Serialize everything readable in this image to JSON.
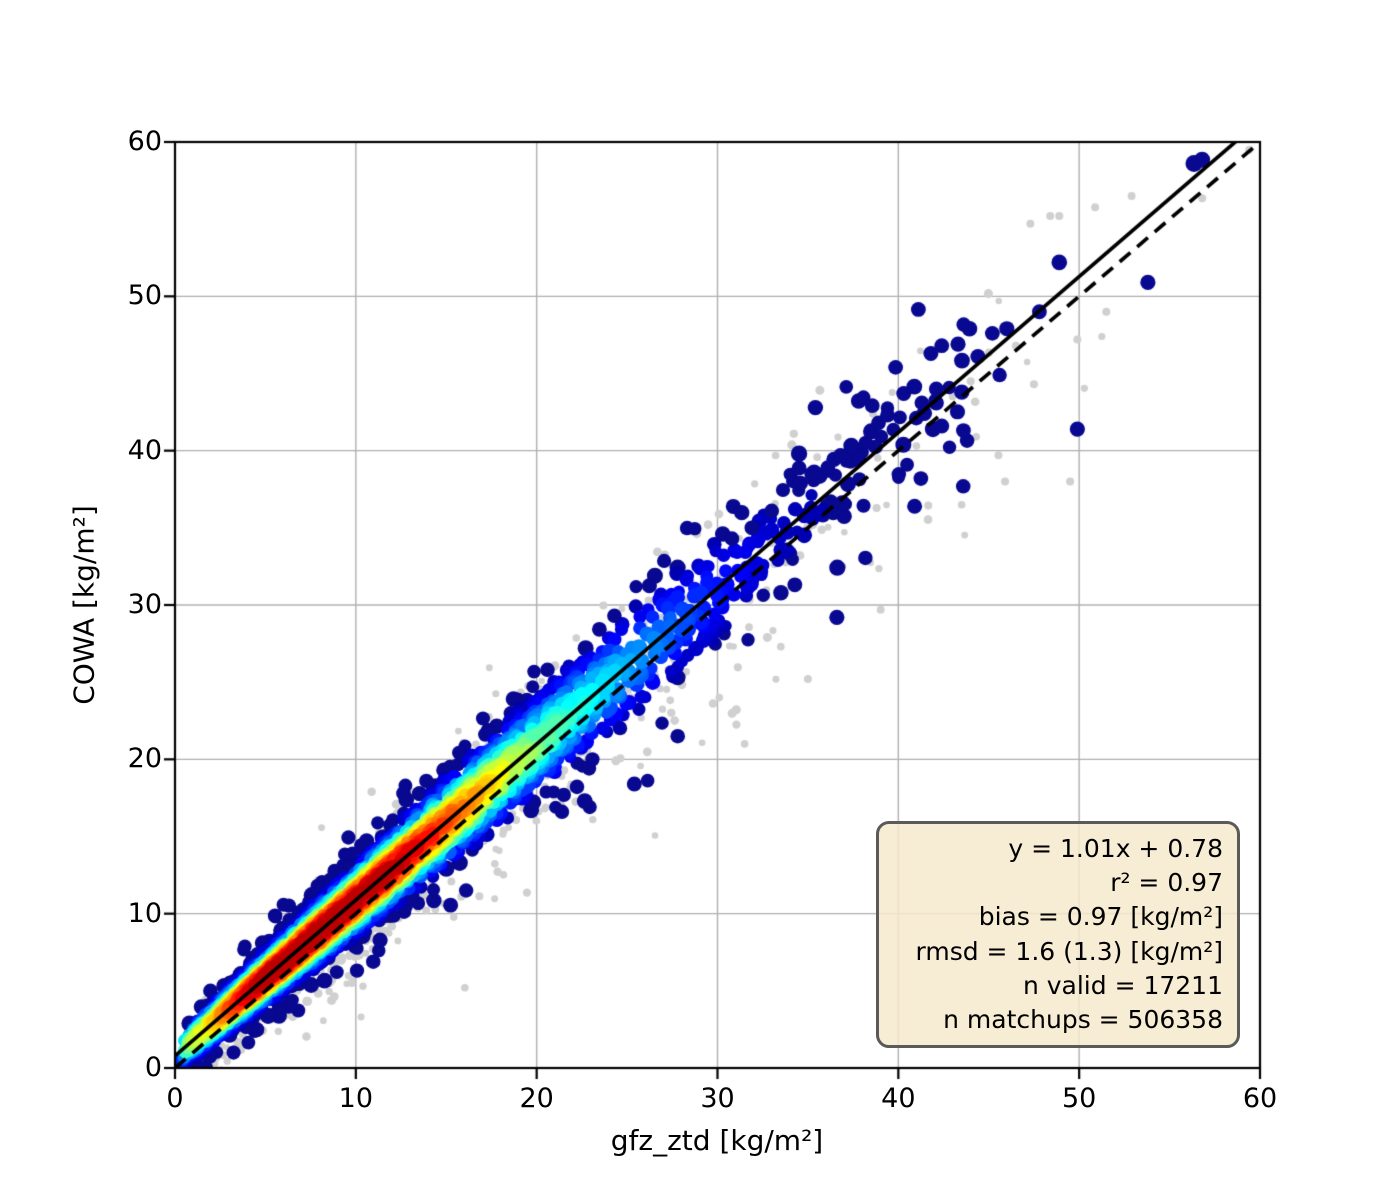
{
  "chart_data": {
    "type": "scatter",
    "title": "",
    "xlabel": "gfz_ztd [kg/m²]",
    "ylabel": "COWA [kg/m²]",
    "xlim": [
      0,
      60
    ],
    "ylim": [
      0,
      60
    ],
    "xticks": [
      0,
      10,
      20,
      30,
      40,
      50,
      60
    ],
    "yticks": [
      0,
      10,
      20,
      30,
      40,
      50,
      60
    ],
    "grid": true,
    "grid_color": "#b0b0b0",
    "background_color": "#ffffff",
    "spine_color": "#000000",
    "identity_line": {
      "from": [
        0,
        0
      ],
      "to": [
        60,
        60
      ],
      "style": "dashed",
      "color": "#000000"
    },
    "fit_line": {
      "slope": 1.01,
      "intercept": 0.78,
      "style": "solid",
      "color": "#000000"
    },
    "stats_box": {
      "face_color": "rgba(246,233,205,0.85)",
      "edge_color": "#5a5a5a",
      "lines": [
        "y = 1.01x + 0.78",
        "r² = 0.97",
        "bias = 0.97 [kg/m²]",
        "rmsd = 1.6 (1.3) [kg/m²]",
        "n valid = 17211",
        "n matchups = 506358"
      ]
    },
    "density_scatter": {
      "colormap": "jet",
      "navy_color_floor": [
        8,
        8,
        145
      ],
      "gray_color": "#d0d0d0",
      "seed": 7,
      "n_colored": 4300,
      "n_gray": 780,
      "x_scales_colored": [
        [
          0.6,
          4.4
        ],
        [
          0.35,
          6.8
        ],
        [
          0.05,
          9.5
        ]
      ],
      "x_scales_gray": [
        [
          0.5,
          5.5
        ],
        [
          0.4,
          8.5
        ],
        [
          0.1,
          12.0
        ]
      ],
      "x_max_colored": 44,
      "x_max_gray": 52,
      "sd_base": 0.5,
      "sd_slope": 0.055,
      "gray_sd_factor": 1.75,
      "fat_tail_prob": 0.07,
      "fat_tail_factor": 2.1,
      "core_t_by_x": [
        [
          0,
          0.45
        ],
        [
          2,
          0.62
        ],
        [
          3,
          0.76
        ],
        [
          4,
          0.86
        ],
        [
          5,
          0.92
        ],
        [
          8,
          0.95
        ],
        [
          12,
          0.9
        ],
        [
          14,
          0.82
        ],
        [
          16,
          0.72
        ],
        [
          18,
          0.6
        ],
        [
          20,
          0.48
        ],
        [
          22,
          0.4
        ],
        [
          25,
          0.3
        ],
        [
          28,
          0.2
        ],
        [
          31,
          0.12
        ],
        [
          34,
          0.06
        ],
        [
          38,
          0.03
        ],
        [
          60,
          0.02
        ]
      ],
      "navy_outliers": [
        [
          56.35,
          58.6,
          8.5
        ],
        [
          56.8,
          58.85,
          8.0
        ],
        [
          48.9,
          52.2,
          7.8
        ],
        [
          53.8,
          50.9,
          7.6
        ],
        [
          47.8,
          49.0,
          7.4
        ],
        [
          46.0,
          47.9,
          7.6
        ],
        [
          45.2,
          47.6,
          7.4
        ],
        [
          44.4,
          46.1,
          7.5
        ],
        [
          43.3,
          46.9,
          7.6
        ],
        [
          42.4,
          46.8,
          7.4
        ],
        [
          41.8,
          46.3,
          7.5
        ],
        [
          42.1,
          44.0,
          7.4
        ],
        [
          41.3,
          43.1,
          7.3
        ],
        [
          45.6,
          44.9,
          7.2
        ],
        [
          42.4,
          41.6,
          7.5
        ],
        [
          43.6,
          41.3,
          7.4
        ],
        [
          49.9,
          41.4,
          7.6
        ],
        [
          40.9,
          36.4,
          7.5
        ],
        [
          36.6,
          29.2,
          7.6
        ],
        [
          38.9,
          41.8,
          7.3
        ],
        [
          39.4,
          42.3,
          7.4
        ],
        [
          40.3,
          43.7,
          7.5
        ],
        [
          38.2,
          40.5,
          7.3
        ],
        [
          37.4,
          40.2,
          7.4
        ],
        [
          36.8,
          39.7,
          7.3
        ],
        [
          36.1,
          38.9,
          7.4
        ],
        [
          35.2,
          38.5,
          7.3
        ],
        [
          34.6,
          37.9,
          7.4
        ],
        [
          33.0,
          36.1,
          7.3
        ],
        [
          31.9,
          35.0,
          7.4
        ],
        [
          30.8,
          34.3,
          7.3
        ],
        [
          25.4,
          18.4,
          7.5
        ],
        [
          27.8,
          21.5,
          7.3
        ],
        [
          16.1,
          11.5,
          7.2
        ],
        [
          13.9,
          18.6,
          7.2
        ],
        [
          20.6,
          25.8,
          7.3
        ],
        [
          24.3,
          29.3,
          7.3
        ],
        [
          21.5,
          17.7,
          7.2
        ],
        [
          21.4,
          16.6,
          7.2
        ]
      ],
      "gray_outliers": [
        [
          52.9,
          56.5,
          4.0
        ],
        [
          48.4,
          55.2,
          4.0
        ],
        [
          48.9,
          55.2,
          4.0
        ],
        [
          56.8,
          56.35,
          4.0
        ],
        [
          59.4,
          59.5,
          4.0
        ],
        [
          49.9,
          47.2,
          4.0
        ],
        [
          45.9,
          38.0,
          4.0
        ],
        [
          36.9,
          32.5,
          4.0
        ],
        [
          47.5,
          44.3,
          4.0
        ],
        [
          38.6,
          42.4,
          4.0
        ],
        [
          49.5,
          38.0,
          4.0
        ],
        [
          35.0,
          25.2,
          4.0
        ],
        [
          30.1,
          24.0,
          3.8
        ],
        [
          33.5,
          27.3,
          3.8
        ],
        [
          44.0,
          44.5,
          4.0
        ],
        [
          46.5,
          46.8,
          4.0
        ],
        [
          51.5,
          49.0,
          4.0
        ],
        [
          41.0,
          40.3,
          3.8
        ],
        [
          43.5,
          36.5,
          3.8
        ],
        [
          31.5,
          21.0,
          3.8
        ],
        [
          28.0,
          30.5,
          3.8
        ],
        [
          25.5,
          27.5,
          3.8
        ]
      ]
    }
  }
}
